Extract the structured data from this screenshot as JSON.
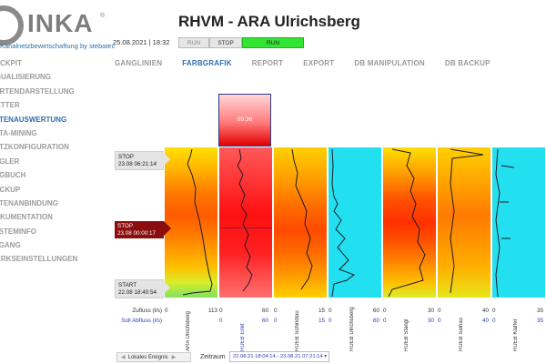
{
  "header": {
    "logo_text": "INKA",
    "logo_reg": "®",
    "logo_subtitle": "Kanalnetzbewirtschaftung by stebatec",
    "title": "RHVM - ARA Ulrichsberg",
    "datetime": "25.08.2021 | 18:32",
    "mode_run": "RUN",
    "mode_stop": "STOP",
    "mode_active": "RUN"
  },
  "tabs": [
    {
      "label": "GANGLINIEN"
    },
    {
      "label": "FARBGRAFIK"
    },
    {
      "label": "REPORT"
    },
    {
      "label": "EXPORT"
    },
    {
      "label": "DB MANIPULATION"
    },
    {
      "label": "DB BACKUP"
    }
  ],
  "sidebar": {
    "items": [
      {
        "label": "COCKPIT"
      },
      {
        "label": "VISUALISIERUNG"
      },
      {
        "label": "KARTENDARSTELLUNG"
      },
      {
        "label": "WETTER"
      },
      {
        "label": "DATENAUSWERTUNG"
      },
      {
        "label": "DATA-MINING"
      },
      {
        "label": "NETZKONFIGURATION"
      },
      {
        "label": "REGLER"
      },
      {
        "label": "LOGBUCH"
      },
      {
        "label": "BACKUP"
      },
      {
        "label": "DATENANBINDUNG"
      },
      {
        "label": "DOKUMENTATION"
      },
      {
        "label": "SYSTEMINFO"
      },
      {
        "label": "ZUGANG"
      },
      {
        "label": "WERKSEINSTELLUNGEN"
      }
    ]
  },
  "chart": {
    "top_box_value": "89.36",
    "markers": {
      "stop1_label": "STOP",
      "stop1_time": "23.08 06:21:14",
      "stop2_label": "STOP",
      "stop2_time": "23.08 00:00:17",
      "start_label": "START",
      "start_time": "22.08 18:40:54"
    },
    "row1_label": "Zufluss (l/s)",
    "row2_label": "Soll Abfluss (l/s)",
    "columns": [
      {
        "name": "ARA Ulrichsberg",
        "min1": "0",
        "max1": "113",
        "min2": "",
        "max2": "",
        "name_blue": false
      },
      {
        "name": "RUEB Erlet",
        "min1": "0",
        "max1": "60",
        "min2": "0",
        "max2": "60",
        "name_blue": true
      },
      {
        "name": "RUEB Schindlau",
        "min1": "0",
        "max1": "15",
        "min2": "0",
        "max2": "15",
        "name_blue": false
      },
      {
        "name": "RUEB Ulrichsberg",
        "min1": "0",
        "max1": "60",
        "min2": "0",
        "max2": "60",
        "name_blue": false
      },
      {
        "name": "RUEB Stangl",
        "min1": "0",
        "max1": "30",
        "min2": "0",
        "max2": "30",
        "name_blue": false
      },
      {
        "name": "RUEB Salnau",
        "min1": "0",
        "max1": "40",
        "min2": "0",
        "max2": "40",
        "name_blue": false
      },
      {
        "name": "RUEB Klaffer",
        "min1": "0",
        "max1": "35",
        "min2": "0",
        "max2": "35",
        "name_blue": false
      }
    ]
  },
  "controls": {
    "lokal_button": "Lokales Ereignis",
    "zeitraum_label": "Zeitraum",
    "zeitraum_value": "22.08.21 18:04:14 - 23.08.21 07:21:14"
  },
  "colors": {
    "accent_blue": "#2f6fae",
    "run_green": "#33e433",
    "stop_marker": "#8b0d0d"
  }
}
